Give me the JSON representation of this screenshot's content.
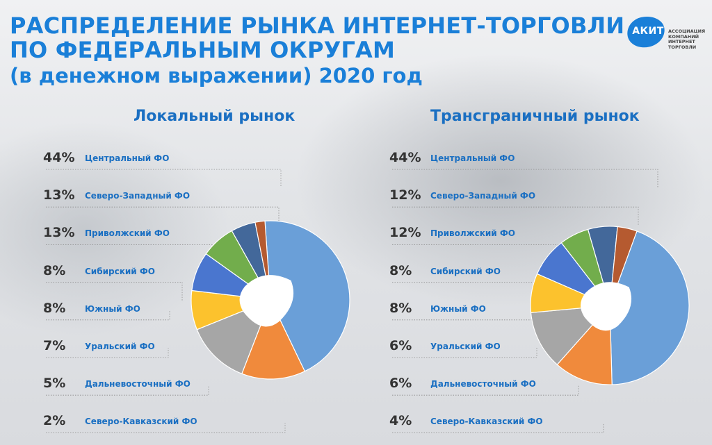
{
  "title": {
    "line1": "РАСПРЕДЕЛЕНИЕ РЫНКА ИНТЕРНЕТ-ТОРГОВЛИ",
    "line2": "ПО ФЕДЕРАЛЬНЫМ ОКРУГАМ",
    "line3": "(в денежном выражении) 2020 год"
  },
  "logo": {
    "text": "АКИТ",
    "caption": [
      "АССОЦИАЦИЯ",
      "КОМПАНИЙ",
      "ИНТЕРНЕТ",
      "ТОРГОВЛИ"
    ]
  },
  "chart_data": [
    {
      "type": "pie",
      "title": "Локальный рынок",
      "categories": [
        "Центральный ФО",
        "Северо-Западный ФО",
        "Приволжский ФО",
        "Сибирский ФО",
        "Южный ФО",
        "Уральский ФО",
        "Дальневосточный ФО",
        "Северо-Кавказский ФО"
      ],
      "values": [
        44,
        13,
        13,
        8,
        8,
        7,
        5,
        2
      ],
      "labels": [
        "44%",
        "13%",
        "13%",
        "8%",
        "8%",
        "7%",
        "5%",
        "2%"
      ],
      "colors": [
        "#6a9fd8",
        "#f08a3c",
        "#a6a6a6",
        "#fcc22d",
        "#4a76cf",
        "#72ad4c",
        "#43689a",
        "#b55a30"
      ]
    },
    {
      "type": "pie",
      "title": "Трансграничный рынок",
      "categories": [
        "Центральный ФО",
        "Северо-Западный ФО",
        "Приволжский ФО",
        "Сибирский ФО",
        "Южный ФО",
        "Уральский ФО",
        "Дальневосточный ФО",
        "Северо-Кавказский ФО"
      ],
      "values": [
        44,
        12,
        12,
        8,
        8,
        6,
        6,
        4
      ],
      "labels": [
        "44%",
        "12%",
        "12%",
        "8%",
        "8%",
        "6%",
        "6%",
        "4%"
      ],
      "colors": [
        "#6a9fd8",
        "#f08a3c",
        "#a6a6a6",
        "#fcc22d",
        "#4a76cf",
        "#72ad4c",
        "#43689a",
        "#b55a30"
      ]
    }
  ]
}
